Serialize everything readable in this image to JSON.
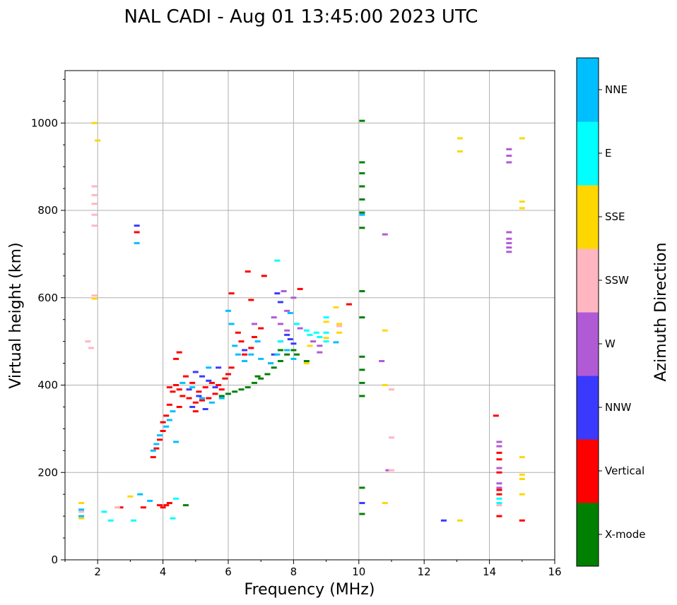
{
  "chart_data": {
    "type": "scatter",
    "title": "NAL CADI - Aug 01 13:45:00 2023 UTC",
    "xlabel": "Frequency (MHz)",
    "ylabel": "Virtual height (km)",
    "xlim": [
      1,
      16
    ],
    "ylim": [
      0,
      1120
    ],
    "xticks": [
      "2",
      "4",
      "6",
      "8",
      "10",
      "12",
      "14",
      "16"
    ],
    "yticks": [
      "0",
      "200",
      "400",
      "600",
      "800",
      "1000"
    ],
    "grid": true,
    "colorbar": {
      "title": "Azimuth Direction",
      "categories": [
        {
          "label": "X-mode",
          "color": "#008000"
        },
        {
          "label": "Vertical",
          "color": "#ff0000"
        },
        {
          "label": "NNW",
          "color": "#3a3aff"
        },
        {
          "label": "W",
          "color": "#b15ad6"
        },
        {
          "label": "SSW",
          "color": "#ffb6c1"
        },
        {
          "label": "SSE",
          "color": "#ffd700"
        },
        {
          "label": "E",
          "color": "#00ffff"
        },
        {
          "label": "NNE",
          "color": "#00bfff"
        }
      ]
    },
    "series": [
      {
        "name": "X-mode",
        "points": [
          [
            5.8,
            375
          ],
          [
            6.0,
            380
          ],
          [
            6.2,
            385
          ],
          [
            6.4,
            390
          ],
          [
            6.6,
            395
          ],
          [
            6.8,
            405
          ],
          [
            7.0,
            415
          ],
          [
            7.2,
            425
          ],
          [
            7.4,
            440
          ],
          [
            7.6,
            455
          ],
          [
            7.8,
            470
          ],
          [
            8.0,
            480
          ],
          [
            6.9,
            420
          ],
          [
            7.3,
            450
          ],
          [
            7.6,
            480
          ],
          [
            8.1,
            470
          ],
          [
            8.4,
            455
          ],
          [
            10.1,
            1005
          ],
          [
            10.1,
            910
          ],
          [
            10.1,
            885
          ],
          [
            10.1,
            855
          ],
          [
            10.1,
            825
          ],
          [
            10.1,
            795
          ],
          [
            10.1,
            760
          ],
          [
            10.1,
            615
          ],
          [
            10.1,
            555
          ],
          [
            10.1,
            465
          ],
          [
            10.1,
            435
          ],
          [
            10.1,
            405
          ],
          [
            10.1,
            375
          ],
          [
            10.1,
            165
          ],
          [
            10.1,
            105
          ],
          [
            4.7,
            125
          ]
        ]
      },
      {
        "name": "Vertical",
        "points": [
          [
            3.7,
            235
          ],
          [
            3.8,
            255
          ],
          [
            3.9,
            275
          ],
          [
            4.0,
            295
          ],
          [
            4.0,
            315
          ],
          [
            4.1,
            330
          ],
          [
            4.2,
            355
          ],
          [
            4.3,
            385
          ],
          [
            4.2,
            395
          ],
          [
            4.4,
            400
          ],
          [
            4.5,
            390
          ],
          [
            4.6,
            375
          ],
          [
            4.8,
            370
          ],
          [
            5.0,
            360
          ],
          [
            5.2,
            365
          ],
          [
            5.4,
            370
          ],
          [
            5.6,
            380
          ],
          [
            5.8,
            390
          ],
          [
            4.4,
            460
          ],
          [
            4.5,
            475
          ],
          [
            4.7,
            420
          ],
          [
            4.9,
            405
          ],
          [
            5.1,
            385
          ],
          [
            5.3,
            395
          ],
          [
            5.5,
            405
          ],
          [
            5.7,
            400
          ],
          [
            5.9,
            415
          ],
          [
            6.0,
            425
          ],
          [
            6.1,
            440
          ],
          [
            6.1,
            610
          ],
          [
            6.3,
            520
          ],
          [
            6.4,
            500
          ],
          [
            6.5,
            470
          ],
          [
            6.7,
            485
          ],
          [
            6.8,
            510
          ],
          [
            7.0,
            530
          ],
          [
            6.6,
            660
          ],
          [
            6.7,
            595
          ],
          [
            7.1,
            650
          ],
          [
            8.2,
            620
          ],
          [
            9.7,
            585
          ],
          [
            4.0,
            120
          ],
          [
            4.1,
            125
          ],
          [
            4.2,
            130
          ],
          [
            3.9,
            125
          ],
          [
            3.4,
            120
          ],
          [
            2.7,
            120
          ],
          [
            14.2,
            330
          ],
          [
            14.3,
            245
          ],
          [
            14.3,
            230
          ],
          [
            14.3,
            200
          ],
          [
            14.3,
            160
          ],
          [
            14.3,
            150
          ],
          [
            14.3,
            100
          ],
          [
            15.0,
            90
          ],
          [
            3.2,
            750
          ],
          [
            4.5,
            350
          ],
          [
            5.0,
            340
          ]
        ]
      },
      {
        "name": "NNW",
        "points": [
          [
            5.0,
            430
          ],
          [
            5.2,
            420
          ],
          [
            5.4,
            410
          ],
          [
            5.6,
            395
          ],
          [
            4.8,
            390
          ],
          [
            5.1,
            375
          ],
          [
            6.5,
            480
          ],
          [
            7.4,
            470
          ],
          [
            7.6,
            500
          ],
          [
            7.8,
            515
          ],
          [
            7.9,
            505
          ],
          [
            8.0,
            495
          ],
          [
            7.6,
            590
          ],
          [
            7.5,
            610
          ],
          [
            4.9,
            350
          ],
          [
            10.1,
            130
          ],
          [
            12.6,
            90
          ],
          [
            3.2,
            765
          ],
          [
            5.3,
            345
          ],
          [
            5.7,
            440
          ]
        ]
      },
      {
        "name": "W",
        "points": [
          [
            7.4,
            555
          ],
          [
            7.6,
            540
          ],
          [
            7.8,
            525
          ],
          [
            8.0,
            600
          ],
          [
            8.6,
            500
          ],
          [
            8.8,
            490
          ],
          [
            8.8,
            475
          ],
          [
            7.7,
            615
          ],
          [
            7.8,
            570
          ],
          [
            8.2,
            530
          ],
          [
            14.6,
            940
          ],
          [
            14.6,
            925
          ],
          [
            14.6,
            910
          ],
          [
            14.6,
            750
          ],
          [
            14.6,
            735
          ],
          [
            14.6,
            725
          ],
          [
            14.6,
            715
          ],
          [
            14.6,
            705
          ],
          [
            14.3,
            270
          ],
          [
            14.3,
            260
          ],
          [
            14.3,
            210
          ],
          [
            14.3,
            175
          ],
          [
            14.3,
            165
          ],
          [
            10.8,
            745
          ],
          [
            10.7,
            455
          ],
          [
            10.9,
            205
          ],
          [
            6.8,
            540
          ]
        ]
      },
      {
        "name": "SSW",
        "points": [
          [
            1.9,
            855
          ],
          [
            1.9,
            835
          ],
          [
            1.9,
            815
          ],
          [
            1.9,
            790
          ],
          [
            1.9,
            765
          ],
          [
            1.9,
            605
          ],
          [
            1.7,
            500
          ],
          [
            1.8,
            485
          ],
          [
            2.6,
            120
          ],
          [
            9.4,
            535
          ],
          [
            11.0,
            390
          ],
          [
            11.0,
            280
          ],
          [
            11.0,
            205
          ],
          [
            14.3,
            125
          ],
          [
            1.5,
            110
          ]
        ]
      },
      {
        "name": "SSE",
        "points": [
          [
            1.9,
            1000
          ],
          [
            2.0,
            960
          ],
          [
            1.9,
            598
          ],
          [
            9.0,
            545
          ],
          [
            9.4,
            520
          ],
          [
            9.4,
            540
          ],
          [
            9.3,
            578
          ],
          [
            10.8,
            525
          ],
          [
            10.8,
            400
          ],
          [
            10.8,
            130
          ],
          [
            13.1,
            965
          ],
          [
            13.1,
            935
          ],
          [
            15.0,
            965
          ],
          [
            15.0,
            820
          ],
          [
            15.0,
            805
          ],
          [
            15.0,
            235
          ],
          [
            15.0,
            195
          ],
          [
            15.0,
            185
          ],
          [
            15.0,
            150
          ],
          [
            13.1,
            90
          ],
          [
            8.4,
            450
          ],
          [
            8.5,
            490
          ],
          [
            9.0,
            508
          ],
          [
            1.5,
            130
          ],
          [
            3.0,
            145
          ],
          [
            1.5,
            95
          ]
        ]
      },
      {
        "name": "E",
        "points": [
          [
            8.4,
            525
          ],
          [
            8.5,
            515
          ],
          [
            8.7,
            520
          ],
          [
            8.8,
            510
          ],
          [
            9.0,
            520
          ],
          [
            9.0,
            500
          ],
          [
            7.5,
            685
          ],
          [
            7.6,
            500
          ],
          [
            4.3,
            95
          ],
          [
            2.4,
            90
          ],
          [
            3.1,
            90
          ],
          [
            2.2,
            110
          ],
          [
            4.4,
            140
          ],
          [
            14.3,
            140
          ],
          [
            14.3,
            130
          ],
          [
            9.0,
            555
          ],
          [
            8.1,
            540
          ]
        ]
      },
      {
        "name": "NNE",
        "points": [
          [
            3.7,
            250
          ],
          [
            3.8,
            265
          ],
          [
            3.9,
            285
          ],
          [
            4.1,
            305
          ],
          [
            4.2,
            320
          ],
          [
            4.3,
            340
          ],
          [
            4.6,
            405
          ],
          [
            4.9,
            395
          ],
          [
            5.2,
            370
          ],
          [
            5.5,
            360
          ],
          [
            5.8,
            370
          ],
          [
            6.0,
            570
          ],
          [
            6.1,
            540
          ],
          [
            6.2,
            490
          ],
          [
            6.3,
            470
          ],
          [
            6.5,
            455
          ],
          [
            6.7,
            470
          ],
          [
            6.9,
            500
          ],
          [
            7.0,
            460
          ],
          [
            7.3,
            450
          ],
          [
            7.5,
            470
          ],
          [
            7.8,
            480
          ],
          [
            8.0,
            460
          ],
          [
            7.9,
            565
          ],
          [
            9.3,
            498
          ],
          [
            3.2,
            725
          ],
          [
            3.3,
            150
          ],
          [
            3.6,
            135
          ],
          [
            1.5,
            100
          ],
          [
            1.5,
            115
          ],
          [
            10.1,
            790
          ],
          [
            4.4,
            270
          ],
          [
            5.4,
            440
          ]
        ]
      }
    ]
  }
}
